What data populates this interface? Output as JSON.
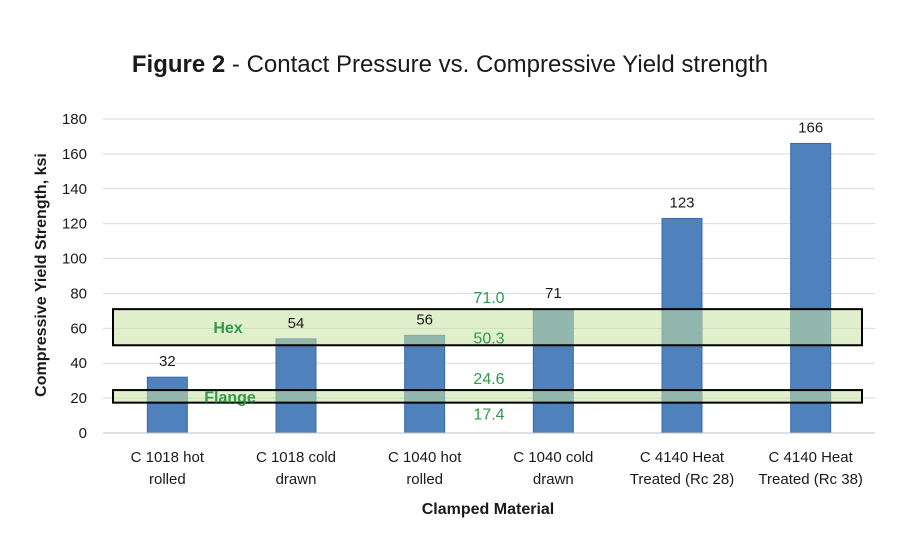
{
  "chart_data": {
    "type": "bar",
    "title_bold": "Figure 2",
    "title_rest": " - Contact Pressure vs. Compressive Yield strength",
    "xlabel": "Clamped Material",
    "ylabel": "Compressive Yield Strength, ksi",
    "ylim": [
      0,
      180
    ],
    "yticks": [
      "0",
      "20",
      "40",
      "60",
      "80",
      "100",
      "120",
      "140",
      "160",
      "180"
    ],
    "grid": true,
    "categories": [
      [
        "C 1018 hot",
        "rolled"
      ],
      [
        "C 1018 cold",
        "drawn"
      ],
      [
        "C 1040 hot",
        "rolled"
      ],
      [
        "C 1040 cold",
        "drawn"
      ],
      [
        "C 4140 Heat",
        "Treated (Rc 28)"
      ],
      [
        "C 4140 Heat",
        "Treated (Rc 38)"
      ]
    ],
    "values": [
      32,
      54,
      56,
      71,
      123,
      166
    ],
    "data_labels": [
      "32",
      "54",
      "56",
      "71",
      "123",
      "166"
    ],
    "bands": [
      {
        "name": "Hex",
        "low": 50.3,
        "high": 71.0,
        "low_label": "50.3",
        "high_label": "71.0"
      },
      {
        "name": "Flange",
        "low": 17.4,
        "high": 24.6,
        "low_label": "17.4",
        "high_label": "24.6"
      }
    ],
    "colors": {
      "bar": "#4f81bd",
      "bar_edge": "#3a6aa3",
      "band_fill": "#c9e3a2",
      "band_text": "#2f9a4a",
      "grid": "#d9d9d9",
      "text": "#1a1a1a"
    }
  }
}
